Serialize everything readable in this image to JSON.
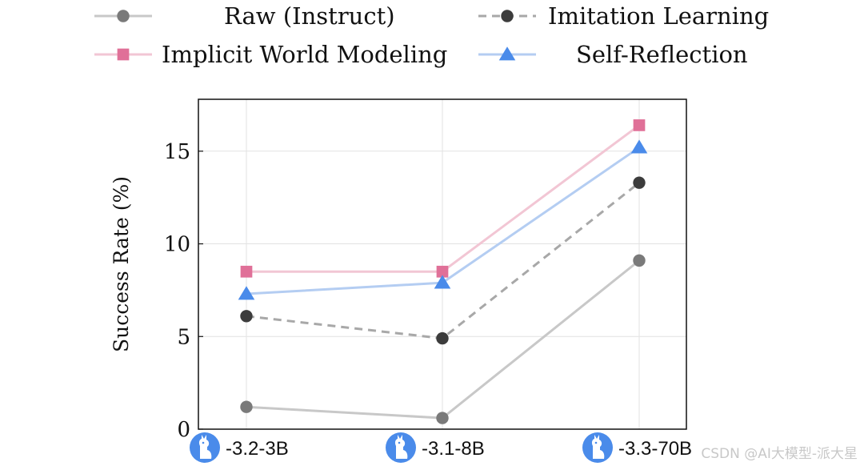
{
  "chart_data": {
    "type": "line",
    "ylabel": "Success Rate (%)",
    "xlabel": "",
    "categories": [
      "-3.2-3B",
      "-3.1-8B",
      "-3.3-70B"
    ],
    "category_icon": "llama-icon",
    "ylim": [
      0,
      17.8
    ],
    "yticks": [
      "0",
      "5",
      "10",
      "15"
    ],
    "grid": true,
    "legend_position": "top",
    "series": [
      {
        "name": "Raw (Instruct)",
        "values": [
          1.2,
          0.6,
          9.1
        ],
        "color": "#c8c8c8",
        "marker": "circle",
        "marker_color": "#7a7a7a",
        "dashed": false
      },
      {
        "name": "Imitation Learning",
        "values": [
          6.1,
          4.9,
          13.3
        ],
        "color": "#a8a8a8",
        "marker": "circle",
        "marker_color": "#3c3c3c",
        "dashed": true
      },
      {
        "name": "Implicit World Modeling",
        "values": [
          8.5,
          8.5,
          16.4
        ],
        "color": "#f2c6d4",
        "marker": "square",
        "marker_color": "#e07098",
        "dashed": false
      },
      {
        "name": "Self-Reflection",
        "values": [
          7.3,
          7.9,
          15.2
        ],
        "color": "#b4cdf2",
        "marker": "triangle",
        "marker_color": "#4a8bea",
        "dashed": false
      }
    ]
  },
  "watermark": "CSDN @AI大模型-派大星"
}
